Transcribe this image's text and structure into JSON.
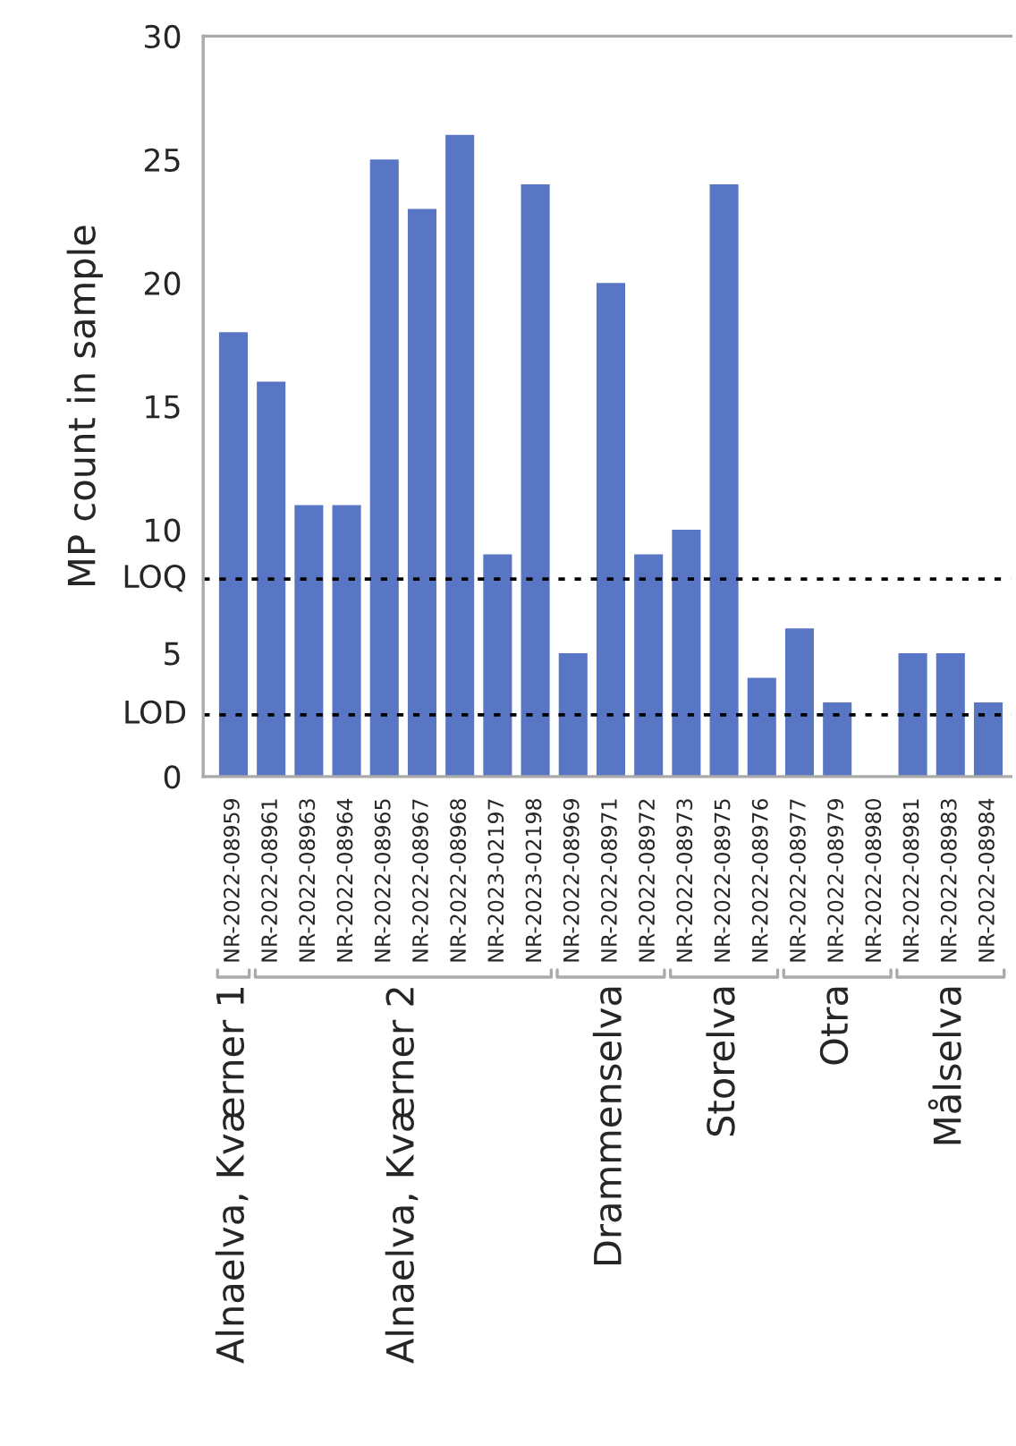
{
  "chart_data": {
    "type": "bar",
    "ylabel": "MP count in sample",
    "categories": [
      "NR-2022-08959",
      "NR-2022-08961",
      "NR-2022-08963",
      "NR-2022-08964",
      "NR-2022-08965",
      "NR-2022-08967",
      "NR-2022-08968",
      "NR-2023-02197",
      "NR-2023-02198",
      "NR-2022-08969",
      "NR-2022-08971",
      "NR-2022-08972",
      "NR-2022-08973",
      "NR-2022-08975",
      "NR-2022-08976",
      "NR-2022-08977",
      "NR-2022-08979",
      "NR-2022-08980",
      "NR-2022-08981",
      "NR-2022-08983",
      "NR-2022-08984"
    ],
    "values": [
      18,
      16,
      11,
      11,
      25,
      23,
      26,
      9,
      24,
      5,
      20,
      9,
      10,
      24,
      4,
      6,
      3,
      0,
      5,
      5,
      3
    ],
    "color": "#5876c4",
    "ylim": [
      0,
      30
    ],
    "yticks": [
      0,
      5,
      10,
      15,
      20,
      25,
      30
    ],
    "ref_lines": [
      {
        "axis": "y",
        "value": 8,
        "label": "LOQ",
        "color": "#000000",
        "line_style": "dotted"
      },
      {
        "axis": "y",
        "value": 2.5,
        "label": "LOD",
        "color": "#000000",
        "line_style": "dotted"
      }
    ],
    "annotations": [
      "Alnaelva, Kværner 1",
      "Alnaelva, Kværner 2",
      "Drammenselva",
      "Storelva",
      "Otra",
      "Målselva"
    ],
    "grid": false
  }
}
